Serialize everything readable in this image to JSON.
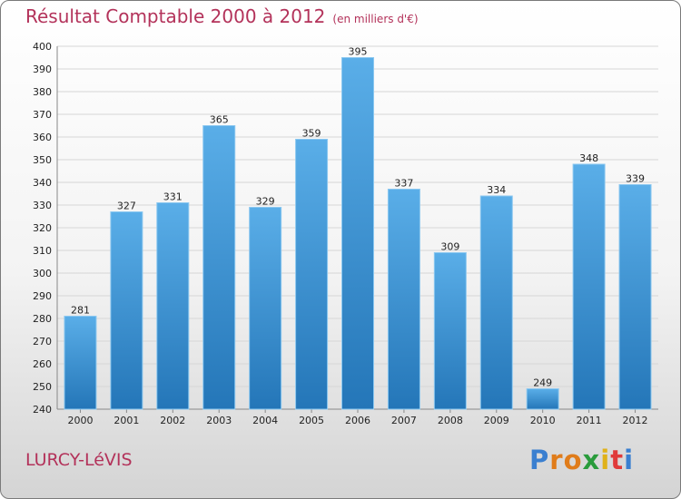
{
  "title": "Résultat Comptable 2000 à 2012",
  "unit_label": "(en milliers d'€)",
  "location": "LURCY-LéVIS",
  "logo_text": "Proxiti",
  "colors": {
    "title": "#b3325a",
    "bar_top": "#5aaee8",
    "bar_bottom": "#2476b8",
    "grid": "#d6d6d6"
  },
  "chart_data": {
    "type": "bar",
    "title": "Résultat Comptable 2000 à 2012",
    "ylabel": "(en milliers d'€)",
    "xlabel": "",
    "categories": [
      "2000",
      "2001",
      "2002",
      "2003",
      "2004",
      "2005",
      "2006",
      "2007",
      "2008",
      "2009",
      "2010",
      "2011",
      "2012"
    ],
    "values": [
      281,
      327,
      331,
      365,
      329,
      359,
      395,
      337,
      309,
      334,
      249,
      348,
      339
    ],
    "ylim": [
      240,
      400
    ],
    "ytick_step": 10,
    "grid": true
  }
}
